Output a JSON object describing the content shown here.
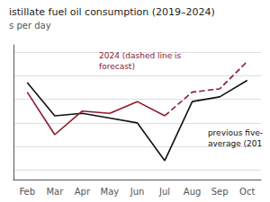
{
  "chart_data": {
    "type": "line",
    "title": "istillate fuel oil consumption (2019–2024)",
    "ylabel": "s per day",
    "categories": [
      "Feb",
      "Mar",
      "Apr",
      "May",
      "Jun",
      "Jul",
      "Aug",
      "Sep",
      "Oct"
    ],
    "series": [
      {
        "color": "#111111",
        "line_style": "solid",
        "values": [
          3.85,
          3.15,
          3.2,
          3.1,
          3.0,
          2.2,
          3.45,
          3.55,
          3.9
        ]
      },
      {
        "color": "#8b1a2e",
        "line_style": "solid",
        "values": [
          3.65,
          2.75,
          3.25,
          3.2,
          3.45,
          3.15,
          null,
          null,
          null
        ]
      },
      {
        "color": "#8b1a2e",
        "line_style": "dashed",
        "values": [
          null,
          null,
          null,
          null,
          null,
          3.15,
          3.65,
          3.72,
          4.3
        ]
      }
    ],
    "ylim": [
      1.8,
      4.65
    ],
    "yticks": [
      2,
      2.5,
      3,
      3.5,
      4,
      4.5
    ],
    "grid": true,
    "tick_labels": "x",
    "annotations": [
      "2024 (dashed line is\nforecast)",
      "previous five-\naverage (201"
    ]
  }
}
